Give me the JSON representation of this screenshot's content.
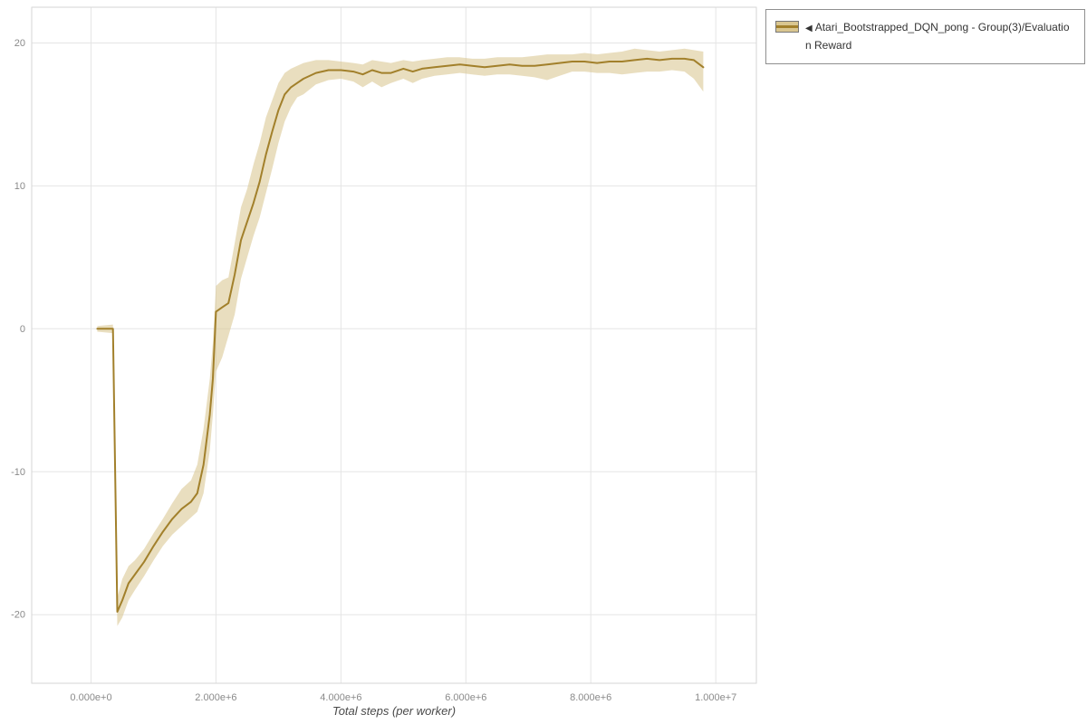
{
  "legend": {
    "marker": "◀",
    "label": "Atari_Bootstrapped_DQN_pong - Group(3)/Evaluation Reward"
  },
  "chart_data": {
    "type": "line",
    "title": "",
    "xlabel": "Total steps (per worker)",
    "ylabel": "",
    "x_units": "total environment steps, x values stored in millions",
    "xlim": [
      -0.95,
      10.65
    ],
    "ylim": [
      -24.8,
      22.5
    ],
    "grid": true,
    "legend_position": "top-right-outside",
    "xticks": [
      {
        "value": 0,
        "label": "0.000e+0"
      },
      {
        "value": 2,
        "label": "2.000e+6"
      },
      {
        "value": 4,
        "label": "4.000e+6"
      },
      {
        "value": 6,
        "label": "6.000e+6"
      },
      {
        "value": 8,
        "label": "8.000e+6"
      },
      {
        "value": 10,
        "label": "1.000e+7"
      }
    ],
    "yticks": [
      {
        "value": 20,
        "label": "20"
      },
      {
        "value": 10,
        "label": "10"
      },
      {
        "value": 0,
        "label": "0"
      },
      {
        "value": -10,
        "label": "-10"
      },
      {
        "value": -20,
        "label": "-20"
      }
    ],
    "series": [
      {
        "name": "Atari_Bootstrapped_DQN_pong - Group(3)/Evaluation Reward",
        "color": "#a2802b",
        "band_color": "#d9c690",
        "x_millions": [
          0.1,
          0.35,
          0.42,
          0.5,
          0.6,
          0.7,
          0.85,
          1.0,
          1.15,
          1.3,
          1.45,
          1.6,
          1.7,
          1.8,
          1.9,
          1.95,
          2.0,
          2.1,
          2.2,
          2.3,
          2.4,
          2.5,
          2.6,
          2.7,
          2.8,
          2.9,
          3.0,
          3.1,
          3.2,
          3.3,
          3.4,
          3.6,
          3.8,
          4.0,
          4.2,
          4.35,
          4.5,
          4.65,
          4.8,
          5.0,
          5.15,
          5.3,
          5.5,
          5.7,
          5.9,
          6.1,
          6.3,
          6.5,
          6.7,
          6.9,
          7.1,
          7.3,
          7.5,
          7.7,
          7.9,
          8.1,
          8.3,
          8.5,
          8.7,
          8.9,
          9.1,
          9.3,
          9.5,
          9.65,
          9.8
        ],
        "mean": [
          0,
          0,
          -19.8,
          -19.0,
          -17.8,
          -17.2,
          -16.3,
          -15.2,
          -14.2,
          -13.3,
          -12.6,
          -12.1,
          -11.5,
          -9.5,
          -6.0,
          -3.5,
          1.2,
          1.5,
          1.8,
          3.8,
          6.2,
          7.5,
          8.8,
          10.3,
          12.2,
          13.8,
          15.3,
          16.4,
          16.9,
          17.2,
          17.5,
          17.9,
          18.1,
          18.1,
          18.0,
          17.8,
          18.1,
          17.9,
          17.9,
          18.2,
          18.0,
          18.2,
          18.3,
          18.4,
          18.5,
          18.4,
          18.3,
          18.4,
          18.5,
          18.4,
          18.4,
          18.5,
          18.6,
          18.7,
          18.7,
          18.6,
          18.7,
          18.7,
          18.8,
          18.9,
          18.8,
          18.9,
          18.9,
          18.8,
          18.3
        ],
        "lower": [
          -0.2,
          -0.3,
          -20.8,
          -20.2,
          -19.0,
          -18.3,
          -17.3,
          -16.2,
          -15.2,
          -14.4,
          -13.8,
          -13.2,
          -12.8,
          -11.5,
          -8.5,
          -6.0,
          -3.0,
          -2.0,
          -0.5,
          1.0,
          3.5,
          5.0,
          6.5,
          7.8,
          9.5,
          11.2,
          13.0,
          14.5,
          15.5,
          16.2,
          16.4,
          17.1,
          17.4,
          17.5,
          17.3,
          16.9,
          17.3,
          16.9,
          17.2,
          17.5,
          17.2,
          17.5,
          17.7,
          17.8,
          17.9,
          17.8,
          17.7,
          17.8,
          17.8,
          17.7,
          17.6,
          17.4,
          17.7,
          18.0,
          18.0,
          17.9,
          17.9,
          17.8,
          17.9,
          18.0,
          18.0,
          18.1,
          18.0,
          17.5,
          16.6
        ],
        "upper": [
          0.2,
          0.3,
          -18.8,
          -17.5,
          -16.6,
          -16.2,
          -15.4,
          -14.3,
          -13.3,
          -12.2,
          -11.2,
          -10.6,
          -9.5,
          -7.0,
          -3.5,
          -1.0,
          3.0,
          3.4,
          3.6,
          6.0,
          8.5,
          9.8,
          11.5,
          13.0,
          14.8,
          16.0,
          17.2,
          17.9,
          18.2,
          18.4,
          18.6,
          18.8,
          18.8,
          18.7,
          18.6,
          18.5,
          18.8,
          18.7,
          18.6,
          18.8,
          18.7,
          18.8,
          18.9,
          19.0,
          19.0,
          18.9,
          18.9,
          19.0,
          19.0,
          19.0,
          19.1,
          19.2,
          19.2,
          19.2,
          19.3,
          19.2,
          19.3,
          19.4,
          19.6,
          19.5,
          19.4,
          19.5,
          19.6,
          19.5,
          19.4
        ]
      }
    ]
  }
}
